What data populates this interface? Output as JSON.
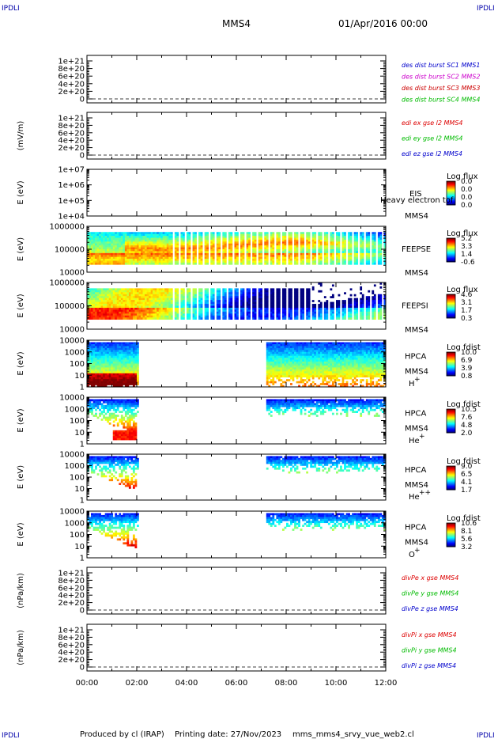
{
  "header": {
    "corner_tl": "IPDLI",
    "corner_tr": "IPDLI",
    "corner_bl": "IPDLI",
    "corner_br": "IPDLI",
    "spacecraft": "MMS4",
    "datetime": "01/Apr/2016 00:00"
  },
  "footer": {
    "produced_by": "Produced by cl (IRAP)",
    "printing_date": "Printing date: 27/Nov/2023",
    "script": "mms_mms4_srvy_vue_web2.cl"
  },
  "colors": {
    "des1": "#0000cc",
    "des2": "#cc00cc",
    "des3": "#cc0000",
    "des4": "#00bb00",
    "red": "#dd0000",
    "green": "#00bb00",
    "blue": "#0000cc"
  },
  "chart_data": [
    {
      "type": "line",
      "ylabel": "",
      "yticks": [
        "1e+21",
        "8e+20",
        "6e+20",
        "4e+20",
        "2e+20",
        "0"
      ],
      "legend": [
        "des dist burst SC1 MMS1",
        "des dist burst SC2 MMS2",
        "des dist burst SC3 MMS3",
        "des dist burst SC4 MMS4"
      ]
    },
    {
      "type": "line",
      "ylabel": "(mV/m)",
      "yticks": [
        "1e+21",
        "8e+20",
        "6e+20",
        "4e+20",
        "2e+20",
        "0"
      ],
      "legend": [
        "edi ex gse l2 MMS4",
        "edi ey gse l2 MMS4",
        "edi ez gse l2 MMS4"
      ]
    },
    {
      "type": "heatmap",
      "ylabel": "E (eV)",
      "yticks": [
        "1e+07",
        "1e+06",
        "1e+05",
        "1e+04"
      ],
      "instrument": "EIS",
      "label2": "MMS4",
      "note": "Heavy electron tof",
      "cbar_title": "Log flux",
      "cbar_ticks": [
        "0.0",
        "0.0",
        "0.0",
        "0.0"
      ]
    },
    {
      "type": "heatmap",
      "ylabel": "E (eV)",
      "yticks": [
        "1000000",
        "100000",
        "10000"
      ],
      "instrument": "FEEPSE",
      "label2": "MMS4",
      "cbar_title": "Log flux",
      "cbar_ticks": [
        "5.2",
        "3.3",
        "1.4",
        "-0.6"
      ]
    },
    {
      "type": "heatmap",
      "ylabel": "E (eV)",
      "yticks": [
        "1000000",
        "100000",
        "10000"
      ],
      "instrument": "FEEPSI",
      "label2": "MMS4",
      "cbar_title": "Log flux",
      "cbar_ticks": [
        "4.6",
        "3.1",
        "1.7",
        "0.3"
      ]
    },
    {
      "type": "heatmap",
      "ylabel": "E (eV)",
      "yticks": [
        "10000",
        "1000",
        "100",
        "10",
        "1"
      ],
      "instrument": "HPCA",
      "label2": "MMS4",
      "species": "H",
      "charge": "+",
      "cbar_title": "Log fdist",
      "cbar_ticks": [
        "10.0",
        "6.9",
        "3.9",
        "0.8"
      ]
    },
    {
      "type": "heatmap",
      "ylabel": "E (eV)",
      "yticks": [
        "10000",
        "1000",
        "100",
        "10",
        "1"
      ],
      "instrument": "HPCA",
      "label2": "MMS4",
      "species": "He",
      "charge": "+",
      "cbar_title": "Log fdist",
      "cbar_ticks": [
        "10.5",
        "7.6",
        "4.8",
        "2.0"
      ]
    },
    {
      "type": "heatmap",
      "ylabel": "E (eV)",
      "yticks": [
        "10000",
        "1000",
        "100",
        "10",
        "1"
      ],
      "instrument": "HPCA",
      "label2": "MMS4",
      "species": "He",
      "charge": "++",
      "cbar_title": "Log fdist",
      "cbar_ticks": [
        "9.0",
        "6.5",
        "4.1",
        "1.7"
      ]
    },
    {
      "type": "heatmap",
      "ylabel": "E (eV)",
      "yticks": [
        "10000",
        "1000",
        "100",
        "10",
        "1"
      ],
      "instrument": "HPCA",
      "label2": "MMS4",
      "species": "O",
      "charge": "+",
      "cbar_title": "Log fdist",
      "cbar_ticks": [
        "10.6",
        "8.1",
        "5.6",
        "3.2"
      ]
    },
    {
      "type": "line",
      "ylabel": "(nPa/km)",
      "yticks": [
        "1e+21",
        "8e+20",
        "6e+20",
        "4e+20",
        "2e+20",
        "0"
      ],
      "legend": [
        "divPe x gse MMS4",
        "divPe y gse MMS4",
        "divPe z gse MMS4"
      ]
    },
    {
      "type": "line",
      "ylabel": "(nPa/km)",
      "yticks": [
        "1e+21",
        "8e+20",
        "6e+20",
        "4e+20",
        "2e+20",
        "0"
      ],
      "legend": [
        "divPi x gse MMS4",
        "divPi y gse MMS4",
        "divPi z gse MMS4"
      ]
    }
  ],
  "xaxis": {
    "ticks": [
      "00:00",
      "02:00",
      "04:00",
      "06:00",
      "08:00",
      "10:00",
      "12:00"
    ]
  }
}
